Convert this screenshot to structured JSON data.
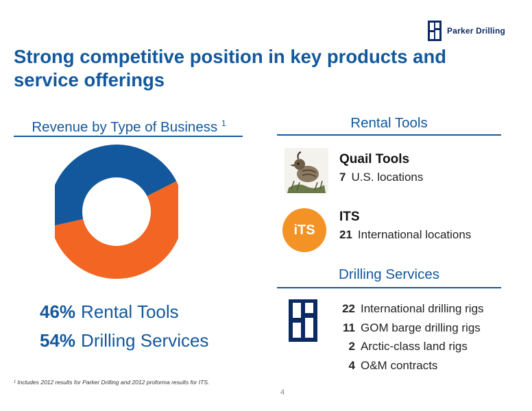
{
  "header": {
    "logo_text": "Parker Drilling",
    "title": "Strong competitive position in key products and service offerings"
  },
  "left": {
    "heading": "Revenue by Type of Business",
    "heading_sup": "1",
    "legend": [
      {
        "pct": "46%",
        "label": "Rental Tools"
      },
      {
        "pct": "54%",
        "label": "Drilling Services"
      }
    ],
    "footnote": "¹ Includes 2012 results for Parker Drilling and 2012 proforma results for ITS."
  },
  "chart_data": {
    "type": "pie",
    "title": "Revenue by Type of Business",
    "donut": true,
    "series": [
      {
        "name": "Rental Tools",
        "value": 46,
        "color": "#13589c"
      },
      {
        "name": "Drilling Services",
        "value": 54,
        "color": "#f26522"
      }
    ]
  },
  "rental": {
    "heading": "Rental Tools",
    "quail": {
      "name": "Quail Tools",
      "count": "7",
      "desc": "U.S. locations"
    },
    "its": {
      "logo": "iTS",
      "name": "ITS",
      "count": "21",
      "desc": "International locations"
    }
  },
  "drilling": {
    "heading": "Drilling Services",
    "items": [
      {
        "count": "22",
        "desc": "International drilling rigs"
      },
      {
        "count": "11",
        "desc": "GOM barge drilling rigs"
      },
      {
        "count": "2",
        "desc": "Arctic-class land rigs"
      },
      {
        "count": "4",
        "desc": "O&M contracts"
      }
    ]
  },
  "page_number": "4",
  "colors": {
    "brand_blue": "#13589c",
    "orange": "#f26522",
    "its_orange": "#f39325",
    "navy": "#0b2a63"
  }
}
